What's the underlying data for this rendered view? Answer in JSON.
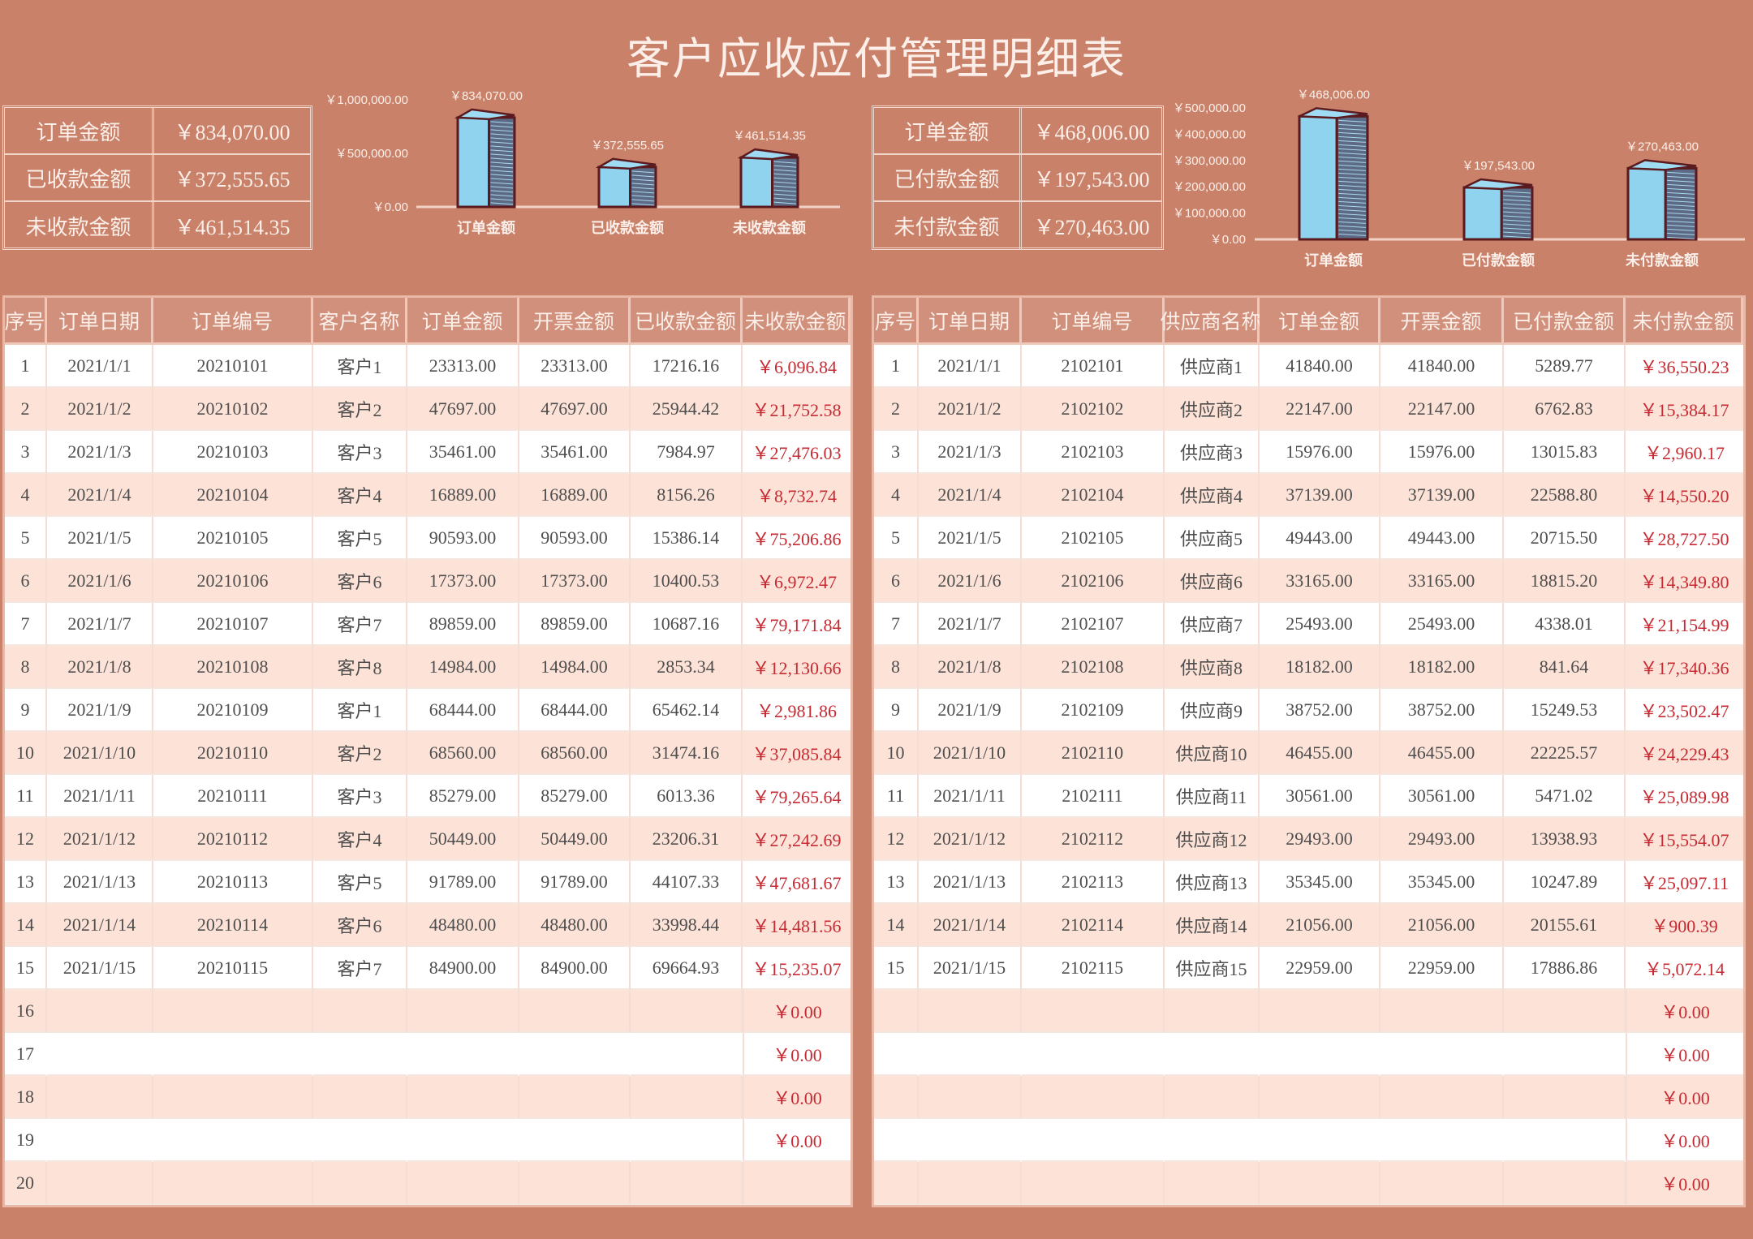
{
  "title": "客户应收应付管理明细表",
  "colors": {
    "background": "#c98169",
    "header": "#d0907b",
    "row_alt": "#fde2d7",
    "negative_red": "#c62a32",
    "bar_face": "#8fd3ee",
    "bar_outline": "#5a1a1e"
  },
  "receivable": {
    "summary": [
      {
        "label": "订单金额",
        "value": "￥834,070.00"
      },
      {
        "label": "已收款金额",
        "value": "￥372,555.65"
      },
      {
        "label": "未收款金额",
        "value": "￥461,514.35"
      }
    ],
    "table": {
      "headers": [
        "序号",
        "订单日期",
        "订单编号",
        "客户名称",
        "订单金额",
        "开票金额",
        "已收款金额",
        "未收款金额"
      ],
      "rows": [
        [
          "1",
          "2021/1/1",
          "20210101",
          "客户1",
          "23313.00",
          "23313.00",
          "17216.16",
          "￥6,096.84"
        ],
        [
          "2",
          "2021/1/2",
          "20210102",
          "客户2",
          "47697.00",
          "47697.00",
          "25944.42",
          "￥21,752.58"
        ],
        [
          "3",
          "2021/1/3",
          "20210103",
          "客户3",
          "35461.00",
          "35461.00",
          "7984.97",
          "￥27,476.03"
        ],
        [
          "4",
          "2021/1/4",
          "20210104",
          "客户4",
          "16889.00",
          "16889.00",
          "8156.26",
          "￥8,732.74"
        ],
        [
          "5",
          "2021/1/5",
          "20210105",
          "客户5",
          "90593.00",
          "90593.00",
          "15386.14",
          "￥75,206.86"
        ],
        [
          "6",
          "2021/1/6",
          "20210106",
          "客户6",
          "17373.00",
          "17373.00",
          "10400.53",
          "￥6,972.47"
        ],
        [
          "7",
          "2021/1/7",
          "20210107",
          "客户7",
          "89859.00",
          "89859.00",
          "10687.16",
          "￥79,171.84"
        ],
        [
          "8",
          "2021/1/8",
          "20210108",
          "客户8",
          "14984.00",
          "14984.00",
          "2853.34",
          "￥12,130.66"
        ],
        [
          "9",
          "2021/1/9",
          "20210109",
          "客户1",
          "68444.00",
          "68444.00",
          "65462.14",
          "￥2,981.86"
        ],
        [
          "10",
          "2021/1/10",
          "20210110",
          "客户2",
          "68560.00",
          "68560.00",
          "31474.16",
          "￥37,085.84"
        ],
        [
          "11",
          "2021/1/11",
          "20210111",
          "客户3",
          "85279.00",
          "85279.00",
          "6013.36",
          "￥79,265.64"
        ],
        [
          "12",
          "2021/1/12",
          "20210112",
          "客户4",
          "50449.00",
          "50449.00",
          "23206.31",
          "￥27,242.69"
        ],
        [
          "13",
          "2021/1/13",
          "20210113",
          "客户5",
          "91789.00",
          "91789.00",
          "44107.33",
          "￥47,681.67"
        ],
        [
          "14",
          "2021/1/14",
          "20210114",
          "客户6",
          "48480.00",
          "48480.00",
          "33998.44",
          "￥14,481.56"
        ],
        [
          "15",
          "2021/1/15",
          "20210115",
          "客户7",
          "84900.00",
          "84900.00",
          "69664.93",
          "￥15,235.07"
        ],
        [
          "16",
          "",
          "",
          "",
          "",
          "",
          "",
          "￥0.00"
        ],
        [
          "17",
          "",
          "",
          "",
          "",
          "",
          "",
          "￥0.00"
        ],
        [
          "18",
          "",
          "",
          "",
          "",
          "",
          "",
          "￥0.00"
        ],
        [
          "19",
          "",
          "",
          "",
          "",
          "",
          "",
          "￥0.00"
        ],
        [
          "20",
          "",
          "",
          "",
          "",
          "",
          "",
          ""
        ]
      ]
    }
  },
  "payable": {
    "summary": [
      {
        "label": "订单金额",
        "value": "￥468,006.00"
      },
      {
        "label": "已付款金额",
        "value": "￥197,543.00"
      },
      {
        "label": "未付款金额",
        "value": "￥270,463.00"
      }
    ],
    "table": {
      "headers": [
        "序号",
        "订单日期",
        "订单编号",
        "供应商名称",
        "订单金额",
        "开票金额",
        "已付款金额",
        "未付款金额"
      ],
      "rows": [
        [
          "1",
          "2021/1/1",
          "2102101",
          "供应商1",
          "41840.00",
          "41840.00",
          "5289.77",
          "￥36,550.23"
        ],
        [
          "2",
          "2021/1/2",
          "2102102",
          "供应商2",
          "22147.00",
          "22147.00",
          "6762.83",
          "￥15,384.17"
        ],
        [
          "3",
          "2021/1/3",
          "2102103",
          "供应商3",
          "15976.00",
          "15976.00",
          "13015.83",
          "￥2,960.17"
        ],
        [
          "4",
          "2021/1/4",
          "2102104",
          "供应商4",
          "37139.00",
          "37139.00",
          "22588.80",
          "￥14,550.20"
        ],
        [
          "5",
          "2021/1/5",
          "2102105",
          "供应商5",
          "49443.00",
          "49443.00",
          "20715.50",
          "￥28,727.50"
        ],
        [
          "6",
          "2021/1/6",
          "2102106",
          "供应商6",
          "33165.00",
          "33165.00",
          "18815.20",
          "￥14,349.80"
        ],
        [
          "7",
          "2021/1/7",
          "2102107",
          "供应商7",
          "25493.00",
          "25493.00",
          "4338.01",
          "￥21,154.99"
        ],
        [
          "8",
          "2021/1/8",
          "2102108",
          "供应商8",
          "18182.00",
          "18182.00",
          "841.64",
          "￥17,340.36"
        ],
        [
          "9",
          "2021/1/9",
          "2102109",
          "供应商9",
          "38752.00",
          "38752.00",
          "15249.53",
          "￥23,502.47"
        ],
        [
          "10",
          "2021/1/10",
          "2102110",
          "供应商10",
          "46455.00",
          "46455.00",
          "22225.57",
          "￥24,229.43"
        ],
        [
          "11",
          "2021/1/11",
          "2102111",
          "供应商11",
          "30561.00",
          "30561.00",
          "5471.02",
          "￥25,089.98"
        ],
        [
          "12",
          "2021/1/12",
          "2102112",
          "供应商12",
          "29493.00",
          "29493.00",
          "13938.93",
          "￥15,554.07"
        ],
        [
          "13",
          "2021/1/13",
          "2102113",
          "供应商13",
          "35345.00",
          "35345.00",
          "10247.89",
          "￥25,097.11"
        ],
        [
          "14",
          "2021/1/14",
          "2102114",
          "供应商14",
          "21056.00",
          "21056.00",
          "20155.61",
          "￥900.39"
        ],
        [
          "15",
          "2021/1/15",
          "2102115",
          "供应商15",
          "22959.00",
          "22959.00",
          "17886.86",
          "￥5,072.14"
        ],
        [
          "",
          "",
          "",
          "",
          "",
          "",
          "",
          "￥0.00"
        ],
        [
          "",
          "",
          "",
          "",
          "",
          "",
          "",
          "￥0.00"
        ],
        [
          "",
          "",
          "",
          "",
          "",
          "",
          "",
          "￥0.00"
        ],
        [
          "",
          "",
          "",
          "",
          "",
          "",
          "",
          "￥0.00"
        ],
        [
          "",
          "",
          "",
          "",
          "",
          "",
          "",
          "￥0.00"
        ]
      ]
    }
  },
  "chart_data": [
    {
      "type": "bar",
      "style": "3d-column",
      "categories": [
        "订单金额",
        "已收款金额",
        "未收款金额"
      ],
      "values": [
        834070.0,
        372555.65,
        461514.35
      ],
      "data_labels": [
        "￥834,070.00",
        "￥372,555.65",
        "￥461,514.35"
      ],
      "ylim": [
        0,
        1000000
      ],
      "yticks": [
        0,
        500000,
        1000000
      ],
      "ytick_labels": [
        "￥0.00",
        "￥500,000.00",
        "￥1,000,000.00"
      ],
      "grid": false
    },
    {
      "type": "bar",
      "style": "3d-column",
      "categories": [
        "订单金额",
        "已付款金额",
        "未付款金额"
      ],
      "values": [
        468006.0,
        197543.0,
        270463.0
      ],
      "data_labels": [
        "￥468,006.00",
        "￥197,543.00",
        "￥270,463.00"
      ],
      "ylim": [
        0,
        500000
      ],
      "yticks": [
        0,
        100000,
        200000,
        300000,
        400000,
        500000
      ],
      "ytick_labels": [
        "￥0.00",
        "￥100,000.00",
        "￥200,000.00",
        "￥300,000.00",
        "￥400,000.00",
        "￥500,000.00"
      ],
      "grid": false
    }
  ]
}
